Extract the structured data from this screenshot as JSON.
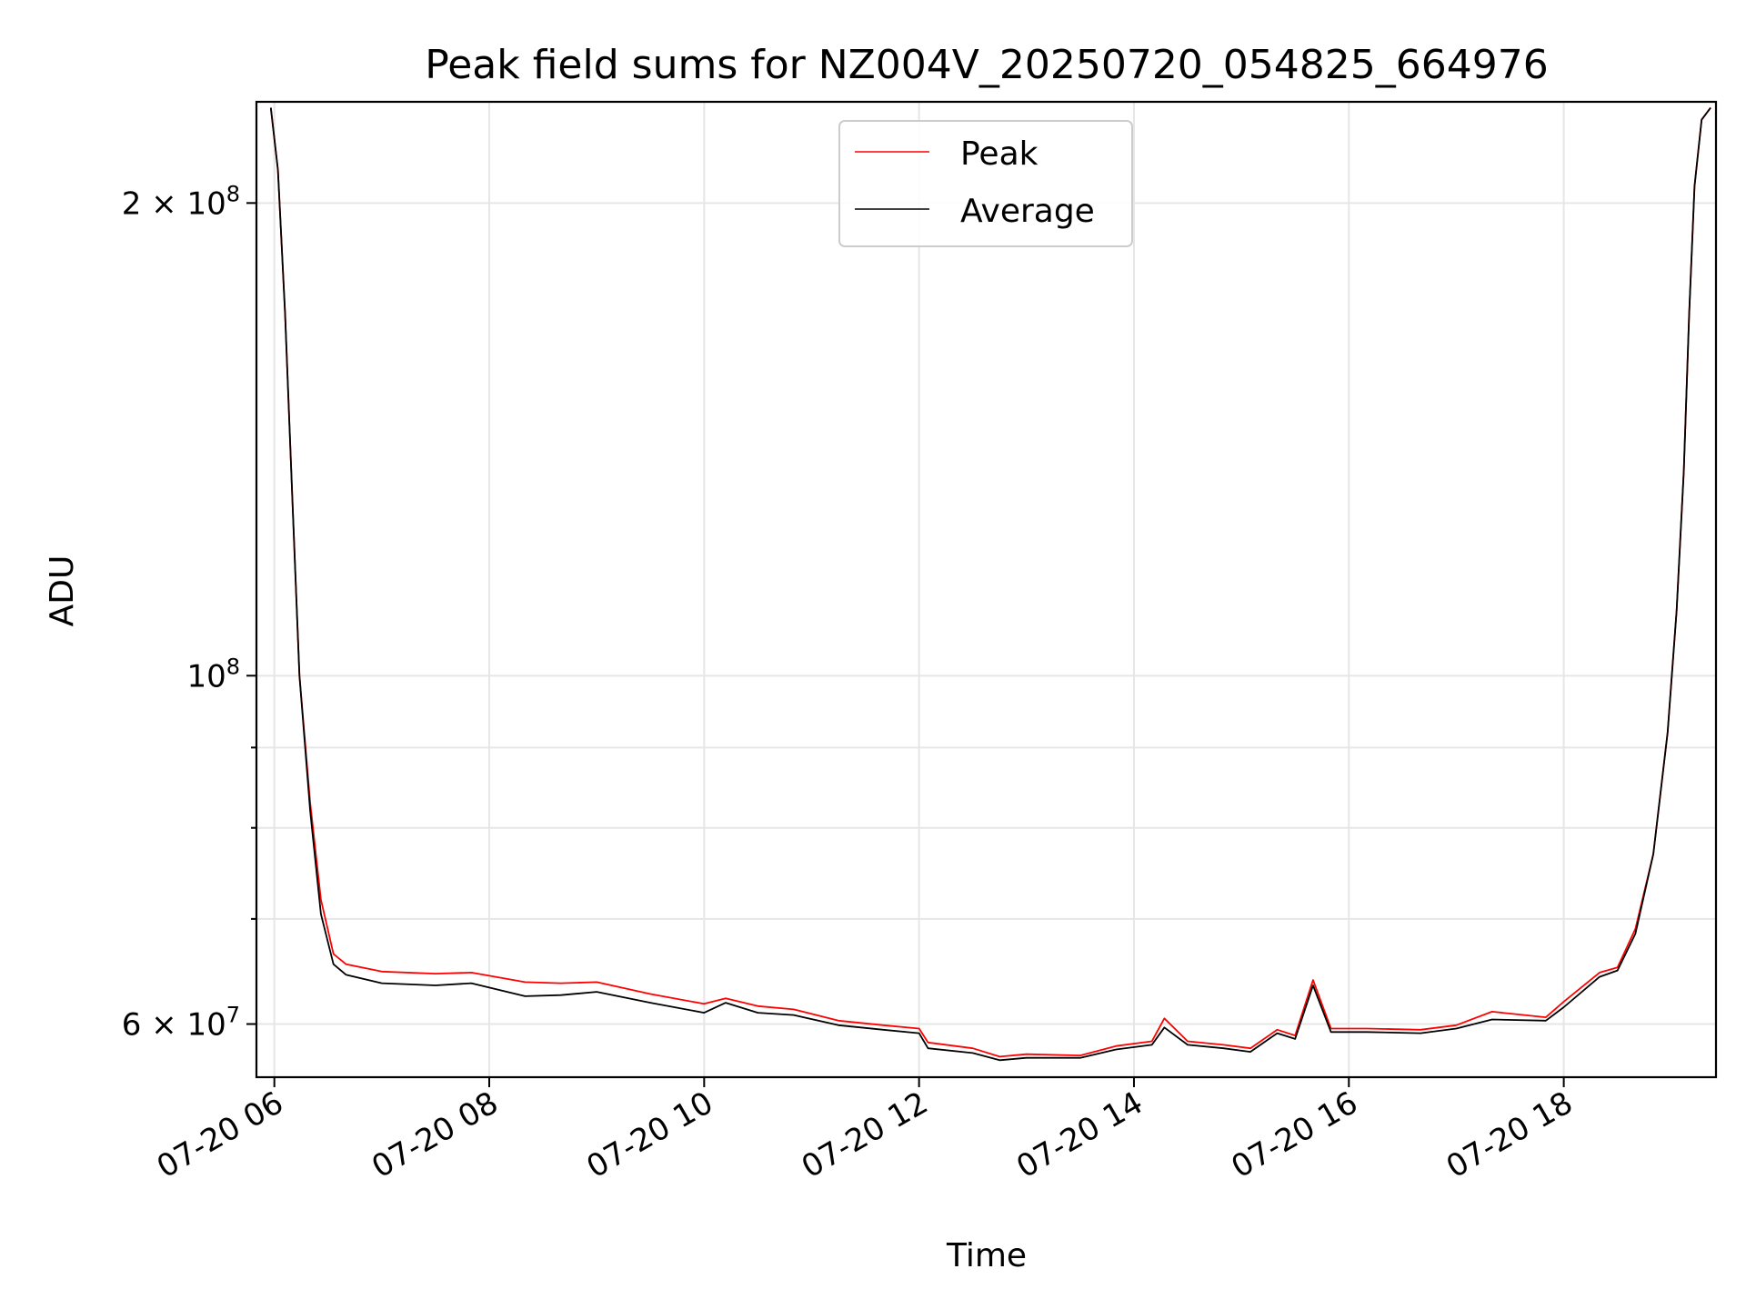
{
  "chart_data": {
    "type": "line",
    "title": "Peak field sums for NZ004V_20250720_054825_664976",
    "xlabel": "Time",
    "ylabel": "ADU",
    "yscale": "log",
    "grid": true,
    "legend_position": "upper-center",
    "x_tick_labels": [
      "07-20 06",
      "07-20 08",
      "07-20 10",
      "07-20 12",
      "07-20 14",
      "07-20 16",
      "07-20 18"
    ],
    "y_tick_labels": [
      {
        "value": 60000000,
        "text": "6 × 10^7"
      },
      {
        "value": 100000000,
        "text": "10^8"
      },
      {
        "value": 200000000,
        "text": "2 × 10^8"
      }
    ],
    "xlim": [
      "2025-07-20 05:50",
      "2025-07-20 19:25"
    ],
    "ylim": [
      55500000,
      232000000
    ],
    "series": [
      {
        "name": "Peak",
        "color": "#ff0000",
        "points": [
          [
            "2025-07-20 05:58",
            230000000
          ],
          [
            "2025-07-20 06:02",
            210000000
          ],
          [
            "2025-07-20 06:06",
            170000000
          ],
          [
            "2025-07-20 06:10",
            130000000
          ],
          [
            "2025-07-20 06:14",
            100000000
          ],
          [
            "2025-07-20 06:20",
            83000000
          ],
          [
            "2025-07-20 06:26",
            72000000
          ],
          [
            "2025-07-20 06:33",
            66500000
          ],
          [
            "2025-07-20 06:40",
            65500000
          ],
          [
            "2025-07-20 07:00",
            64800000
          ],
          [
            "2025-07-20 07:30",
            64600000
          ],
          [
            "2025-07-20 07:50",
            64700000
          ],
          [
            "2025-07-20 08:20",
            63800000
          ],
          [
            "2025-07-20 08:40",
            63700000
          ],
          [
            "2025-07-20 09:00",
            63800000
          ],
          [
            "2025-07-20 09:30",
            62700000
          ],
          [
            "2025-07-20 10:00",
            61800000
          ],
          [
            "2025-07-20 10:12",
            62300000
          ],
          [
            "2025-07-20 10:30",
            61600000
          ],
          [
            "2025-07-20 10:50",
            61300000
          ],
          [
            "2025-07-20 11:15",
            60300000
          ],
          [
            "2025-07-20 11:40",
            59900000
          ],
          [
            "2025-07-20 12:00",
            59600000
          ],
          [
            "2025-07-20 12:05",
            58400000
          ],
          [
            "2025-07-20 12:30",
            57900000
          ],
          [
            "2025-07-20 12:45",
            57200000
          ],
          [
            "2025-07-20 13:00",
            57400000
          ],
          [
            "2025-07-20 13:30",
            57300000
          ],
          [
            "2025-07-20 13:50",
            58100000
          ],
          [
            "2025-07-20 14:10",
            58500000
          ],
          [
            "2025-07-20 14:17",
            60500000
          ],
          [
            "2025-07-20 14:30",
            58500000
          ],
          [
            "2025-07-20 14:50",
            58200000
          ],
          [
            "2025-07-20 15:05",
            57900000
          ],
          [
            "2025-07-20 15:20",
            59500000
          ],
          [
            "2025-07-20 15:30",
            59000000
          ],
          [
            "2025-07-20 15:40",
            64000000
          ],
          [
            "2025-07-20 15:50",
            59600000
          ],
          [
            "2025-07-20 16:10",
            59600000
          ],
          [
            "2025-07-20 16:40",
            59500000
          ],
          [
            "2025-07-20 17:00",
            59900000
          ],
          [
            "2025-07-20 17:20",
            61100000
          ],
          [
            "2025-07-20 17:50",
            60600000
          ],
          [
            "2025-07-20 18:00",
            62000000
          ],
          [
            "2025-07-20 18:20",
            64700000
          ],
          [
            "2025-07-20 18:30",
            65200000
          ],
          [
            "2025-07-20 18:40",
            69000000
          ],
          [
            "2025-07-20 18:50",
            77000000
          ],
          [
            "2025-07-20 18:58",
            92000000
          ],
          [
            "2025-07-20 19:03",
            110000000
          ],
          [
            "2025-07-20 19:07",
            135000000
          ],
          [
            "2025-07-20 19:10",
            170000000
          ],
          [
            "2025-07-20 19:13",
            205000000
          ],
          [
            "2025-07-20 19:17",
            226000000
          ],
          [
            "2025-07-20 19:22",
            230000000
          ]
        ]
      },
      {
        "name": "Average",
        "color": "#000000",
        "points": [
          [
            "2025-07-20 05:58",
            230000000
          ],
          [
            "2025-07-20 06:02",
            210000000
          ],
          [
            "2025-07-20 06:06",
            170000000
          ],
          [
            "2025-07-20 06:10",
            130000000
          ],
          [
            "2025-07-20 06:14",
            100000000
          ],
          [
            "2025-07-20 06:20",
            82000000
          ],
          [
            "2025-07-20 06:26",
            70500000
          ],
          [
            "2025-07-20 06:33",
            65500000
          ],
          [
            "2025-07-20 06:40",
            64500000
          ],
          [
            "2025-07-20 07:00",
            63700000
          ],
          [
            "2025-07-20 07:30",
            63500000
          ],
          [
            "2025-07-20 07:50",
            63700000
          ],
          [
            "2025-07-20 08:20",
            62500000
          ],
          [
            "2025-07-20 08:40",
            62600000
          ],
          [
            "2025-07-20 09:00",
            62900000
          ],
          [
            "2025-07-20 09:30",
            61900000
          ],
          [
            "2025-07-20 10:00",
            61000000
          ],
          [
            "2025-07-20 10:12",
            61900000
          ],
          [
            "2025-07-20 10:30",
            61000000
          ],
          [
            "2025-07-20 10:50",
            60800000
          ],
          [
            "2025-07-20 11:15",
            59900000
          ],
          [
            "2025-07-20 11:40",
            59500000
          ],
          [
            "2025-07-20 12:00",
            59200000
          ],
          [
            "2025-07-20 12:05",
            57900000
          ],
          [
            "2025-07-20 12:30",
            57500000
          ],
          [
            "2025-07-20 12:45",
            56900000
          ],
          [
            "2025-07-20 13:00",
            57100000
          ],
          [
            "2025-07-20 13:30",
            57100000
          ],
          [
            "2025-07-20 13:50",
            57800000
          ],
          [
            "2025-07-20 14:10",
            58200000
          ],
          [
            "2025-07-20 14:17",
            59700000
          ],
          [
            "2025-07-20 14:30",
            58200000
          ],
          [
            "2025-07-20 14:50",
            57900000
          ],
          [
            "2025-07-20 15:05",
            57600000
          ],
          [
            "2025-07-20 15:20",
            59200000
          ],
          [
            "2025-07-20 15:30",
            58700000
          ],
          [
            "2025-07-20 15:40",
            63500000
          ],
          [
            "2025-07-20 15:50",
            59300000
          ],
          [
            "2025-07-20 16:10",
            59300000
          ],
          [
            "2025-07-20 16:40",
            59200000
          ],
          [
            "2025-07-20 17:00",
            59600000
          ],
          [
            "2025-07-20 17:20",
            60400000
          ],
          [
            "2025-07-20 17:50",
            60300000
          ],
          [
            "2025-07-20 18:00",
            61500000
          ],
          [
            "2025-07-20 18:20",
            64300000
          ],
          [
            "2025-07-20 18:30",
            64900000
          ],
          [
            "2025-07-20 18:40",
            68500000
          ],
          [
            "2025-07-20 18:50",
            77000000
          ],
          [
            "2025-07-20 18:58",
            92000000
          ],
          [
            "2025-07-20 19:03",
            110000000
          ],
          [
            "2025-07-20 19:07",
            135000000
          ],
          [
            "2025-07-20 19:10",
            170000000
          ],
          [
            "2025-07-20 19:13",
            205000000
          ],
          [
            "2025-07-20 19:17",
            226000000
          ],
          [
            "2025-07-20 19:22",
            230000000
          ]
        ]
      }
    ]
  }
}
